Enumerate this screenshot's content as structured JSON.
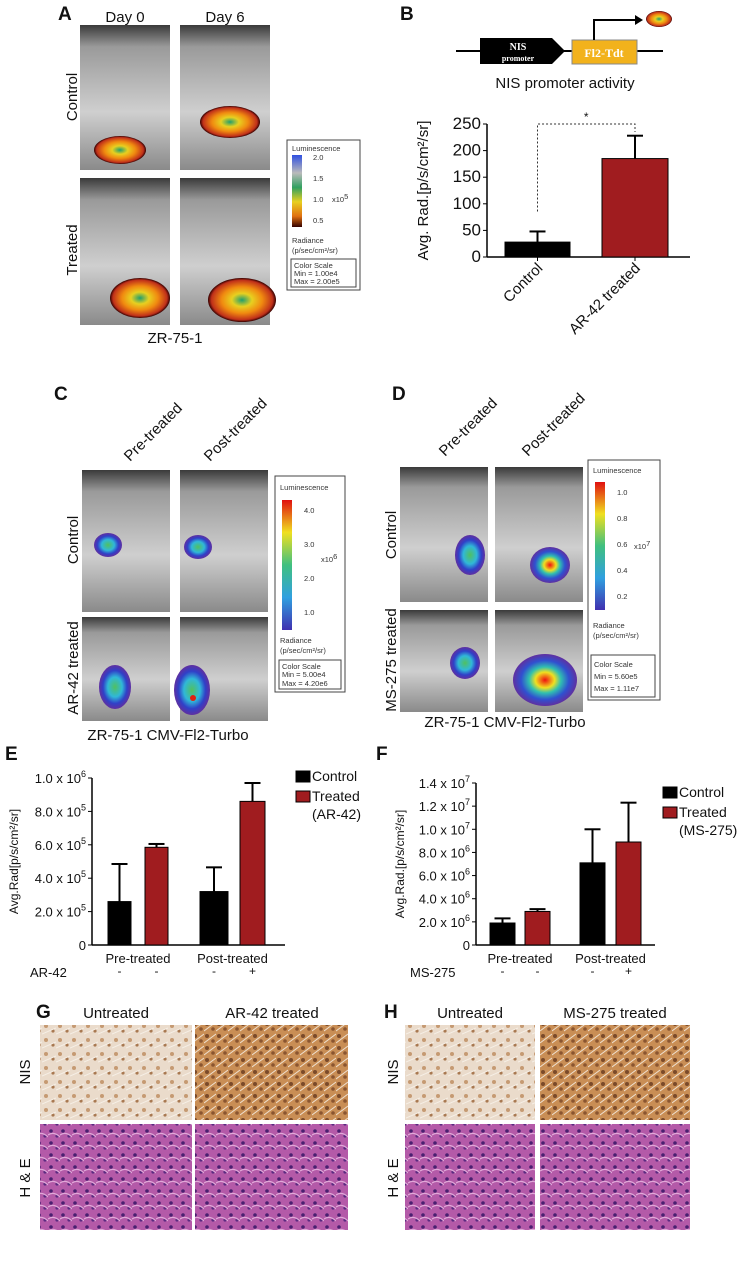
{
  "panels": {
    "A": {
      "label": "A",
      "columns": [
        "Day 0",
        "Day 6"
      ],
      "rows": [
        "Control",
        "Treated"
      ],
      "caption": "ZR-75-1",
      "colorbar": {
        "title": "Luminescence",
        "ticks": [
          "2.0",
          "1.5",
          "1.0",
          "0.5"
        ],
        "exponent_label": "x10",
        "exponent": "5",
        "units_line1": "Radiance",
        "units_line2": "(p/sec/cm²/sr)",
        "scale_title": "Color Scale",
        "min": "Min = 1.00e4",
        "max": "Max = 2.00e5"
      }
    },
    "B": {
      "label": "B",
      "promoter_line1": "NIS",
      "promoter_line2": "promoter",
      "reporter": "Fl2-Tdt"
    },
    "C": {
      "label": "C",
      "columns": [
        "Pre-treated",
        "Post-treated"
      ],
      "rows": [
        "Control",
        "AR-42 treated"
      ],
      "caption": "ZR-75-1 CMV-Fl2-Turbo",
      "colorbar": {
        "title": "Luminescence",
        "ticks": [
          "4.0",
          "3.0",
          "2.0",
          "1.0"
        ],
        "exponent_label": "x10",
        "exponent": "6",
        "units_line1": "Radiance",
        "units_line2": "(p/sec/cm²/sr)",
        "scale_title": "Color Scale",
        "min": "Min = 5.00e4",
        "max": "Max = 4.20e6"
      }
    },
    "D": {
      "label": "D",
      "columns": [
        "Pre-treated",
        "Post-treated"
      ],
      "rows": [
        "Control",
        "MS-275 treated"
      ],
      "caption": "ZR-75-1 CMV-Fl2-Turbo",
      "colorbar": {
        "title": "Luminescence",
        "ticks": [
          "1.0",
          "0.8",
          "0.6",
          "0.4",
          "0.2"
        ],
        "exponent_label": "x10",
        "exponent": "7",
        "units_line1": "Radiance",
        "units_line2": "(p/sec/cm²/sr)",
        "scale_title": "Color Scale",
        "min": "Min = 5.60e5",
        "max": "Max = 1.11e7"
      }
    },
    "E": {
      "label": "E"
    },
    "F": {
      "label": "F"
    },
    "G": {
      "label": "G",
      "columns": [
        "Untreated",
        "AR-42 treated"
      ],
      "rows": [
        "NIS",
        "H & E"
      ]
    },
    "H": {
      "label": "H",
      "columns": [
        "Untreated",
        "MS-275 treated"
      ],
      "rows": [
        "NIS",
        "H & E"
      ]
    }
  },
  "colors": {
    "control": "#000000",
    "treated": "#a01c1f"
  },
  "chart_data": [
    {
      "id": "B",
      "type": "bar",
      "title": "NIS promoter activity",
      "ylabel": "Avg. Rad.[p/s/cm²/sr]",
      "ylim": [
        0,
        250
      ],
      "yticks": [
        {
          "v": 0,
          "m": "0",
          "e": ""
        },
        {
          "v": 50,
          "m": "50",
          "e": ""
        },
        {
          "v": 100,
          "m": "100",
          "e": ""
        },
        {
          "v": 150,
          "m": "150",
          "e": ""
        },
        {
          "v": 200,
          "m": "200",
          "e": ""
        },
        {
          "v": 250,
          "m": "250",
          "e": ""
        }
      ],
      "categories": [
        "Control",
        "AR-42 treated"
      ],
      "values": [
        28,
        185
      ],
      "error_upper": [
        48,
        228
      ],
      "significance": "*"
    },
    {
      "id": "E",
      "type": "bar",
      "ylabel": "Avg.Rad[p/s/cm²/sr]",
      "ylim": [
        0,
        1000000
      ],
      "yticks": [
        {
          "v": 0,
          "m": "0",
          "e": ""
        },
        {
          "v": 200000,
          "m": "2.0 x 10",
          "e": "5"
        },
        {
          "v": 400000,
          "m": "4.0 x 10",
          "e": "5"
        },
        {
          "v": 600000,
          "m": "6.0 x 10",
          "e": "5"
        },
        {
          "v": 800000,
          "m": "8.0 x 10",
          "e": "5"
        },
        {
          "v": 1000000,
          "m": "1.0 x 10",
          "e": "6"
        }
      ],
      "categories": [
        "Pre-treated",
        "Post-treated"
      ],
      "drug_label": "AR-42",
      "drug_marks": [
        "-",
        "-",
        "-",
        "+"
      ],
      "series": [
        {
          "name": "Control",
          "values": [
            260000,
            320000
          ],
          "error_upper": [
            485000,
            465000
          ]
        },
        {
          "name": "Treated",
          "name2": "(AR-42)",
          "values": [
            585000,
            860000
          ],
          "error_upper": [
            605000,
            970000
          ]
        }
      ],
      "legend": "top-right"
    },
    {
      "id": "F",
      "type": "bar",
      "ylabel": "Avg.Rad.[p/s/cm²/sr]",
      "ylim": [
        0,
        14000000
      ],
      "yticks": [
        {
          "v": 0,
          "m": "0",
          "e": ""
        },
        {
          "v": 2000000,
          "m": "2.0 x 10",
          "e": "6"
        },
        {
          "v": 4000000,
          "m": "4.0 x 10",
          "e": "6"
        },
        {
          "v": 6000000,
          "m": "6.0 x 10",
          "e": "6"
        },
        {
          "v": 8000000,
          "m": "8.0 x 10",
          "e": "6"
        },
        {
          "v": 10000000,
          "m": "1.0 x 10",
          "e": "7"
        },
        {
          "v": 12000000,
          "m": "1.2 x 10",
          "e": "7"
        },
        {
          "v": 14000000,
          "m": "1.4 x 10",
          "e": "7"
        }
      ],
      "categories": [
        "Pre-treated",
        "Post-treated"
      ],
      "drug_label": "MS-275",
      "drug_marks": [
        "-",
        "-",
        "-",
        "+"
      ],
      "series": [
        {
          "name": "Control",
          "values": [
            1900000,
            7100000
          ],
          "error_upper": [
            2300000,
            10000000
          ]
        },
        {
          "name": "Treated",
          "name2": "(MS-275)",
          "values": [
            2900000,
            8900000
          ],
          "error_upper": [
            3100000,
            12300000
          ]
        }
      ],
      "legend": "right"
    }
  ]
}
